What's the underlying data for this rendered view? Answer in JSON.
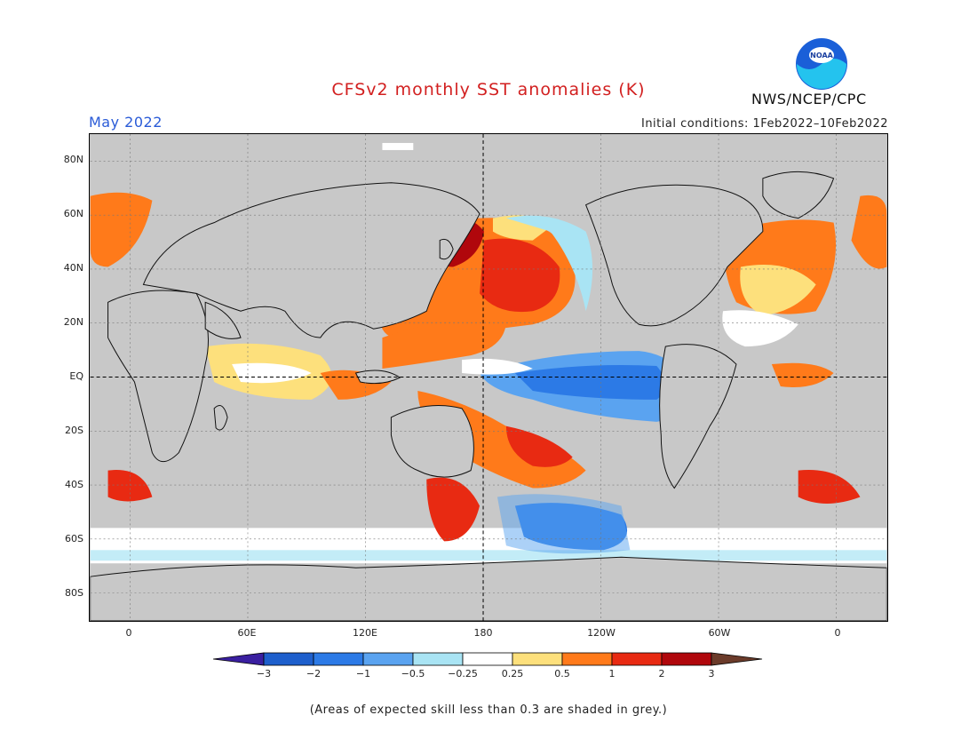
{
  "title": "CFSv2 monthly SST anomalies (K)",
  "month_label": "May 2022",
  "initial_conditions": "Initial conditions: 1Feb2022–10Feb2022",
  "organization": "NWS/NCEP/CPC",
  "logo": {
    "icon": "noaa-logo",
    "text": "NOAA"
  },
  "map": {
    "projection": "equirectangular",
    "center_longitude": 180,
    "lat_range": [
      -90,
      90
    ],
    "lat_ticks": [
      "80N",
      "60N",
      "40N",
      "20N",
      "EQ",
      "20S",
      "40S",
      "60S",
      "80S"
    ],
    "lon_ticks": [
      "0",
      "60E",
      "120E",
      "180",
      "120W",
      "60W",
      "0"
    ],
    "background_color": "#c8c8c8",
    "gridlines": "dotted",
    "highlighted_lines": [
      "equator",
      "dateline"
    ]
  },
  "colorbar": {
    "labels": [
      "−3",
      "−2",
      "−1",
      "−0.5",
      "−0.25",
      "0.25",
      "0.5",
      "1",
      "2",
      "3"
    ],
    "colors": [
      "#3a1fa0",
      "#1e5fcc",
      "#2c7ae6",
      "#5aa3f0",
      "#a9e4f4",
      "#ffffff",
      "#fde07c",
      "#ff7a1a",
      "#e82a12",
      "#b0070c",
      "#6b3b2a"
    ]
  },
  "footnote": "(Areas of expected skill less than 0.3 are shaded in grey.)"
}
